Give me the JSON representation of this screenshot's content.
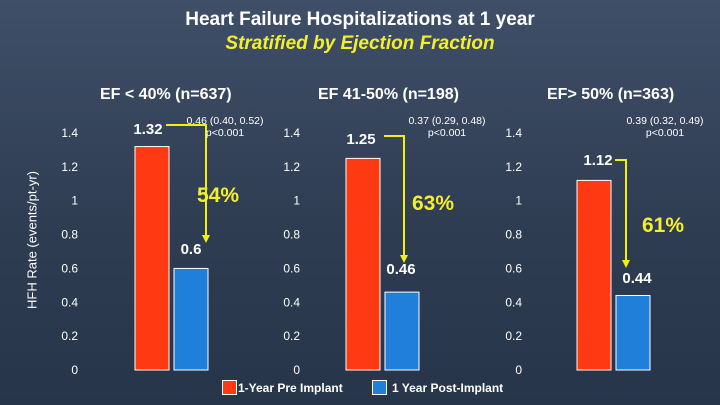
{
  "title": "Heart Failure Hospitalizations at 1 year",
  "subtitle": "Stratified by Ejection Fraction",
  "colors": {
    "pre": "#ff3a12",
    "post": "#1f7fd9",
    "arrow": "#f2f012",
    "accent": "#f4ef2c"
  },
  "chart_data": [
    {
      "type": "bar",
      "title": "EF < 40% (n=637)",
      "ylabel": "HFH Rate (events/pt-yr)",
      "ylim": [
        0,
        1.4
      ],
      "yticks": [
        "1.4",
        "1.2",
        "1",
        "0.8",
        "0.6",
        "0.4",
        "0.2",
        "0"
      ],
      "categories": [
        "1-Year Pre Implant",
        "1 Year Post-Implant"
      ],
      "values": [
        1.32,
        0.6
      ],
      "value_labels": [
        "1.32",
        "0.6"
      ],
      "stats": "0.46 (0.40, 0.52)\np<0.001",
      "reduction": "54%"
    },
    {
      "type": "bar",
      "title": "EF 41-50% (n=198)",
      "ylim": [
        0,
        1.4
      ],
      "yticks": [
        "1.4",
        "1.2",
        "1",
        "0.8",
        "0.6",
        "0.4",
        "0.2",
        "0"
      ],
      "categories": [
        "1-Year Pre Implant",
        "1 Year Post-Implant"
      ],
      "values": [
        1.25,
        0.46
      ],
      "value_labels": [
        "1.25",
        "0.46"
      ],
      "stats": "0.37 (0.29, 0.48)\np<0.001",
      "reduction": "63%"
    },
    {
      "type": "bar",
      "title": "EF> 50% (n=363)",
      "ylim": [
        0,
        1.4
      ],
      "yticks": [
        "1.4",
        "1.2",
        "1",
        "0.8",
        "0.6",
        "0.4",
        "0.2",
        "0"
      ],
      "categories": [
        "1-Year Pre Implant",
        "1 Year Post-Implant"
      ],
      "values": [
        1.12,
        0.44
      ],
      "value_labels": [
        "1.12",
        "0.44"
      ],
      "stats": "0.39 (0.32, 0.49)\np<0.001",
      "reduction": "61%"
    }
  ],
  "legend": [
    {
      "label": "1-Year Pre Implant",
      "color": "#ff3a12"
    },
    {
      "label": "1 Year Post-Implant",
      "color": "#1f7fd9"
    }
  ]
}
